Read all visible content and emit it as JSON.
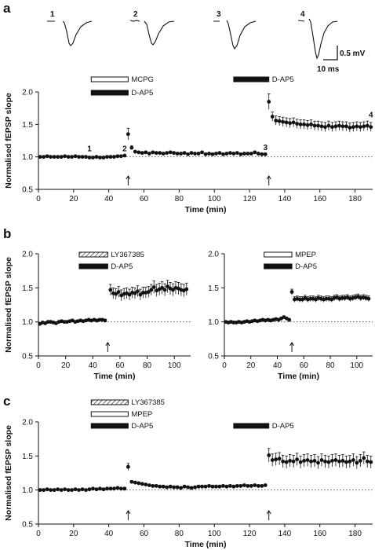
{
  "colors": {
    "ink": "#111111",
    "dotted": "#555555"
  },
  "traces": {
    "labels": [
      "1",
      "2",
      "3",
      "4"
    ],
    "scale_mv": "0.5 mV",
    "scale_ms": "10 ms"
  },
  "chart_data": [
    {
      "id": "a",
      "panel_label": "a",
      "type": "scatter",
      "xlabel": "Time (min)",
      "ylabel": "Normalised fEPSP slope",
      "xlim": [
        0,
        190
      ],
      "ylim": [
        0.5,
        2.0
      ],
      "xticks": [
        0,
        20,
        40,
        60,
        80,
        100,
        120,
        140,
        160,
        180
      ],
      "yticks": [
        "0.5",
        "1.0",
        "1.5",
        "2.0"
      ],
      "baseline": 1.0,
      "arrows_at": [
        51,
        131
      ],
      "bars": [
        {
          "label": "MCPG",
          "fill": "white",
          "x": [
            30,
            51
          ],
          "row": 0
        },
        {
          "label": "D-AP5",
          "fill": "black",
          "x": [
            30,
            51
          ],
          "row": 1
        },
        {
          "label": "D-AP5",
          "fill": "black",
          "x": [
            111,
            131
          ],
          "row": 0
        }
      ],
      "annotations": [
        {
          "text": "1",
          "x": 29,
          "y": 1.06
        },
        {
          "text": "2",
          "x": 49,
          "y": 1.06
        },
        {
          "text": "3",
          "x": 129,
          "y": 1.08
        },
        {
          "text": "4",
          "x": 189,
          "y": 1.58
        }
      ],
      "x": [
        1,
        3,
        5,
        7,
        9,
        11,
        13,
        15,
        17,
        19,
        21,
        23,
        25,
        27,
        29,
        31,
        33,
        35,
        37,
        39,
        41,
        43,
        45,
        47,
        49,
        51,
        53,
        55,
        57,
        59,
        61,
        63,
        65,
        67,
        69,
        71,
        73,
        75,
        77,
        79,
        81,
        83,
        85,
        87,
        89,
        91,
        93,
        95,
        97,
        99,
        101,
        103,
        105,
        107,
        109,
        111,
        113,
        115,
        117,
        119,
        121,
        123,
        125,
        127,
        129,
        131,
        133,
        135,
        137,
        139,
        141,
        143,
        145,
        147,
        149,
        151,
        153,
        155,
        157,
        159,
        161,
        163,
        165,
        167,
        169,
        171,
        173,
        175,
        177,
        179,
        181,
        183,
        185,
        187,
        189
      ],
      "y": [
        1.0,
        1.0,
        1.01,
        1.0,
        1.0,
        1.0,
        1.0,
        1.01,
        1.0,
        1.0,
        1.01,
        1.0,
        1.0,
        1.0,
        0.99,
        0.99,
        1.0,
        0.99,
        0.99,
        1.0,
        1.0,
        1.0,
        1.01,
        1.01,
        1.02,
        1.35,
        1.14,
        1.08,
        1.07,
        1.06,
        1.07,
        1.05,
        1.07,
        1.06,
        1.06,
        1.05,
        1.06,
        1.07,
        1.06,
        1.05,
        1.05,
        1.06,
        1.04,
        1.06,
        1.05,
        1.05,
        1.07,
        1.04,
        1.05,
        1.04,
        1.05,
        1.06,
        1.04,
        1.05,
        1.06,
        1.05,
        1.06,
        1.04,
        1.05,
        1.05,
        1.05,
        1.07,
        1.05,
        1.04,
        1.04,
        1.85,
        1.62,
        1.56,
        1.55,
        1.54,
        1.53,
        1.52,
        1.53,
        1.51,
        1.5,
        1.5,
        1.49,
        1.5,
        1.48,
        1.48,
        1.47,
        1.46,
        1.48,
        1.46,
        1.47,
        1.48,
        1.47,
        1.47,
        1.45,
        1.46,
        1.47,
        1.46,
        1.47,
        1.48,
        1.46
      ],
      "err": [
        0.02,
        0.02,
        0.02,
        0.02,
        0.02,
        0.02,
        0.02,
        0.02,
        0.02,
        0.02,
        0.02,
        0.02,
        0.02,
        0.02,
        0.02,
        0.02,
        0.02,
        0.02,
        0.02,
        0.02,
        0.02,
        0.02,
        0.02,
        0.02,
        0.02,
        0.09,
        0.03,
        0.02,
        0.02,
        0.02,
        0.02,
        0.02,
        0.02,
        0.02,
        0.02,
        0.02,
        0.02,
        0.02,
        0.02,
        0.02,
        0.02,
        0.02,
        0.02,
        0.02,
        0.02,
        0.02,
        0.02,
        0.02,
        0.02,
        0.02,
        0.02,
        0.02,
        0.02,
        0.02,
        0.02,
        0.02,
        0.02,
        0.02,
        0.02,
        0.02,
        0.02,
        0.02,
        0.02,
        0.02,
        0.02,
        0.12,
        0.07,
        0.07,
        0.07,
        0.07,
        0.07,
        0.07,
        0.07,
        0.07,
        0.07,
        0.07,
        0.07,
        0.07,
        0.07,
        0.07,
        0.07,
        0.07,
        0.07,
        0.07,
        0.07,
        0.07,
        0.07,
        0.07,
        0.07,
        0.07,
        0.07,
        0.07,
        0.07,
        0.07,
        0.07
      ]
    },
    {
      "id": "b1",
      "panel_label": "b",
      "type": "scatter",
      "xlabel": "Time (min)",
      "ylabel": "Normalised fEPSP slope",
      "xlim": [
        0,
        112
      ],
      "ylim": [
        0.5,
        2.0
      ],
      "xticks": [
        0,
        20,
        40,
        60,
        80,
        100
      ],
      "yticks": [
        "0.5",
        "1.0",
        "1.5",
        "2.0"
      ],
      "baseline": 1.0,
      "arrows_at": [
        51
      ],
      "bars": [
        {
          "label": "LY367385",
          "fill": "hatch",
          "x": [
            30,
            51
          ],
          "row": 0
        },
        {
          "label": "D-AP5",
          "fill": "black",
          "x": [
            30,
            51
          ],
          "row": 1
        }
      ],
      "annotations": [],
      "x": [
        1,
        3,
        5,
        7,
        9,
        11,
        13,
        15,
        17,
        19,
        21,
        23,
        25,
        27,
        29,
        31,
        33,
        35,
        37,
        39,
        41,
        43,
        45,
        47,
        49,
        53,
        55,
        57,
        59,
        61,
        63,
        65,
        67,
        69,
        71,
        73,
        75,
        77,
        79,
        81,
        83,
        85,
        87,
        89,
        91,
        93,
        95,
        97,
        99,
        101,
        103,
        105,
        107,
        109
      ],
      "y": [
        0.97,
        0.99,
        0.98,
        1.0,
        1.0,
        0.99,
        0.98,
        1.0,
        1.01,
        1.0,
        1.0,
        1.01,
        1.02,
        1.0,
        1.01,
        1.02,
        1.01,
        1.02,
        1.03,
        1.02,
        1.03,
        1.02,
        1.03,
        1.03,
        1.02,
        1.47,
        1.42,
        1.41,
        1.44,
        1.39,
        1.41,
        1.42,
        1.4,
        1.43,
        1.42,
        1.45,
        1.4,
        1.43,
        1.43,
        1.44,
        1.47,
        1.51,
        1.46,
        1.48,
        1.5,
        1.47,
        1.52,
        1.49,
        1.47,
        1.5,
        1.49,
        1.47,
        1.46,
        1.48
      ],
      "err": [
        0.02,
        0.02,
        0.02,
        0.02,
        0.02,
        0.02,
        0.02,
        0.02,
        0.02,
        0.02,
        0.02,
        0.02,
        0.02,
        0.02,
        0.02,
        0.02,
        0.02,
        0.02,
        0.02,
        0.02,
        0.02,
        0.02,
        0.02,
        0.02,
        0.02,
        0.08,
        0.08,
        0.08,
        0.08,
        0.08,
        0.08,
        0.08,
        0.08,
        0.08,
        0.08,
        0.08,
        0.08,
        0.08,
        0.08,
        0.08,
        0.08,
        0.09,
        0.09,
        0.09,
        0.09,
        0.09,
        0.09,
        0.09,
        0.09,
        0.09,
        0.09,
        0.09,
        0.09,
        0.09
      ]
    },
    {
      "id": "b2",
      "panel_label": "",
      "type": "scatter",
      "xlabel": "Time (min)",
      "ylabel": "",
      "xlim": [
        0,
        112
      ],
      "ylim": [
        0.5,
        2.0
      ],
      "xticks": [
        0,
        20,
        40,
        60,
        80,
        100
      ],
      "yticks": [
        "0.5",
        "1.0",
        "1.5",
        "2.0"
      ],
      "baseline": 1.0,
      "arrows_at": [
        51
      ],
      "bars": [
        {
          "label": "MPEP",
          "fill": "white",
          "x": [
            30,
            51
          ],
          "row": 0
        },
        {
          "label": "D-AP5",
          "fill": "black",
          "x": [
            30,
            51
          ],
          "row": 1
        }
      ],
      "annotations": [],
      "x": [
        1,
        3,
        5,
        7,
        9,
        11,
        13,
        15,
        17,
        19,
        21,
        23,
        25,
        27,
        29,
        31,
        33,
        35,
        37,
        39,
        41,
        43,
        45,
        47,
        49,
        51,
        53,
        55,
        57,
        59,
        61,
        63,
        65,
        67,
        69,
        71,
        73,
        75,
        77,
        79,
        81,
        83,
        85,
        87,
        89,
        91,
        93,
        95,
        97,
        99,
        101,
        103,
        105,
        107,
        109
      ],
      "y": [
        1.0,
        0.99,
        1.0,
        0.99,
        0.99,
        1.0,
        0.99,
        1.0,
        1.01,
        1.0,
        1.01,
        1.02,
        1.01,
        1.02,
        1.03,
        1.02,
        1.03,
        1.02,
        1.03,
        1.04,
        1.03,
        1.05,
        1.07,
        1.05,
        1.03,
        1.44,
        1.33,
        1.34,
        1.33,
        1.33,
        1.35,
        1.33,
        1.34,
        1.34,
        1.33,
        1.35,
        1.34,
        1.33,
        1.34,
        1.34,
        1.33,
        1.35,
        1.36,
        1.34,
        1.35,
        1.35,
        1.36,
        1.34,
        1.35,
        1.36,
        1.37,
        1.35,
        1.36,
        1.35,
        1.34
      ],
      "err": [
        0.02,
        0.02,
        0.02,
        0.02,
        0.02,
        0.02,
        0.02,
        0.02,
        0.02,
        0.02,
        0.02,
        0.02,
        0.02,
        0.02,
        0.02,
        0.02,
        0.02,
        0.02,
        0.02,
        0.02,
        0.02,
        0.02,
        0.02,
        0.02,
        0.02,
        0.04,
        0.04,
        0.04,
        0.04,
        0.04,
        0.04,
        0.04,
        0.04,
        0.04,
        0.04,
        0.04,
        0.04,
        0.04,
        0.04,
        0.04,
        0.04,
        0.04,
        0.04,
        0.04,
        0.04,
        0.04,
        0.04,
        0.04,
        0.04,
        0.04,
        0.04,
        0.04,
        0.04,
        0.04,
        0.04
      ]
    },
    {
      "id": "c",
      "panel_label": "c",
      "type": "scatter",
      "xlabel": "Time (min)",
      "ylabel": "Normalised fEPSP slope",
      "xlim": [
        0,
        190
      ],
      "ylim": [
        0.5,
        2.0
      ],
      "xticks": [
        0,
        20,
        40,
        60,
        80,
        100,
        120,
        140,
        160,
        180
      ],
      "yticks": [
        "0.5",
        "1.0",
        "1.5",
        "2.0"
      ],
      "baseline": 1.0,
      "arrows_at": [
        51,
        131
      ],
      "bars": [
        {
          "label": "LY367385",
          "fill": "hatch",
          "x": [
            30,
            51
          ],
          "row": 0
        },
        {
          "label": "MPEP",
          "fill": "white",
          "x": [
            30,
            51
          ],
          "row": 1
        },
        {
          "label": "D-AP5",
          "fill": "black",
          "x": [
            30,
            51
          ],
          "row": 2
        },
        {
          "label": "D-AP5",
          "fill": "black",
          "x": [
            111,
            131
          ],
          "row": 2
        }
      ],
      "annotations": [],
      "x": [
        1,
        3,
        5,
        7,
        9,
        11,
        13,
        15,
        17,
        19,
        21,
        23,
        25,
        27,
        29,
        31,
        33,
        35,
        37,
        39,
        41,
        43,
        45,
        47,
        49,
        51,
        53,
        55,
        57,
        59,
        61,
        63,
        65,
        67,
        69,
        71,
        73,
        75,
        77,
        79,
        81,
        83,
        85,
        87,
        89,
        91,
        93,
        95,
        97,
        99,
        101,
        103,
        105,
        107,
        109,
        111,
        113,
        115,
        117,
        119,
        121,
        123,
        125,
        127,
        129,
        131,
        133,
        135,
        137,
        139,
        141,
        143,
        145,
        147,
        149,
        151,
        153,
        155,
        157,
        159,
        161,
        163,
        165,
        167,
        169,
        171,
        173,
        175,
        177,
        179,
        181,
        183,
        185,
        187,
        189
      ],
      "y": [
        1.0,
        1.0,
        1.01,
        1.0,
        1.0,
        1.01,
        1.0,
        1.01,
        1.0,
        1.0,
        1.01,
        1.0,
        1.01,
        1.0,
        1.01,
        1.02,
        1.01,
        1.02,
        1.01,
        1.02,
        1.02,
        1.02,
        1.03,
        1.02,
        1.02,
        1.34,
        1.12,
        1.11,
        1.1,
        1.09,
        1.08,
        1.07,
        1.06,
        1.06,
        1.05,
        1.05,
        1.04,
        1.05,
        1.04,
        1.04,
        1.03,
        1.05,
        1.04,
        1.03,
        1.04,
        1.05,
        1.05,
        1.05,
        1.06,
        1.05,
        1.05,
        1.05,
        1.06,
        1.05,
        1.06,
        1.05,
        1.06,
        1.06,
        1.07,
        1.06,
        1.06,
        1.07,
        1.06,
        1.06,
        1.07,
        1.51,
        1.44,
        1.45,
        1.46,
        1.42,
        1.41,
        1.43,
        1.42,
        1.45,
        1.41,
        1.43,
        1.44,
        1.42,
        1.43,
        1.4,
        1.44,
        1.42,
        1.41,
        1.43,
        1.44,
        1.42,
        1.43,
        1.41,
        1.42,
        1.44,
        1.4,
        1.43,
        1.47,
        1.42,
        1.41
      ],
      "err": [
        0.02,
        0.02,
        0.02,
        0.02,
        0.02,
        0.02,
        0.02,
        0.02,
        0.02,
        0.02,
        0.02,
        0.02,
        0.02,
        0.02,
        0.02,
        0.02,
        0.02,
        0.02,
        0.02,
        0.02,
        0.02,
        0.02,
        0.02,
        0.02,
        0.02,
        0.05,
        0.02,
        0.02,
        0.02,
        0.02,
        0.02,
        0.02,
        0.02,
        0.02,
        0.02,
        0.02,
        0.02,
        0.02,
        0.02,
        0.02,
        0.02,
        0.02,
        0.02,
        0.02,
        0.02,
        0.02,
        0.02,
        0.02,
        0.02,
        0.02,
        0.02,
        0.02,
        0.02,
        0.02,
        0.02,
        0.02,
        0.02,
        0.02,
        0.02,
        0.02,
        0.02,
        0.02,
        0.02,
        0.02,
        0.02,
        0.1,
        0.09,
        0.09,
        0.09,
        0.09,
        0.09,
        0.09,
        0.09,
        0.09,
        0.09,
        0.09,
        0.09,
        0.09,
        0.09,
        0.09,
        0.09,
        0.09,
        0.09,
        0.09,
        0.09,
        0.09,
        0.09,
        0.09,
        0.09,
        0.09,
        0.09,
        0.09,
        0.09,
        0.09,
        0.09
      ]
    }
  ]
}
